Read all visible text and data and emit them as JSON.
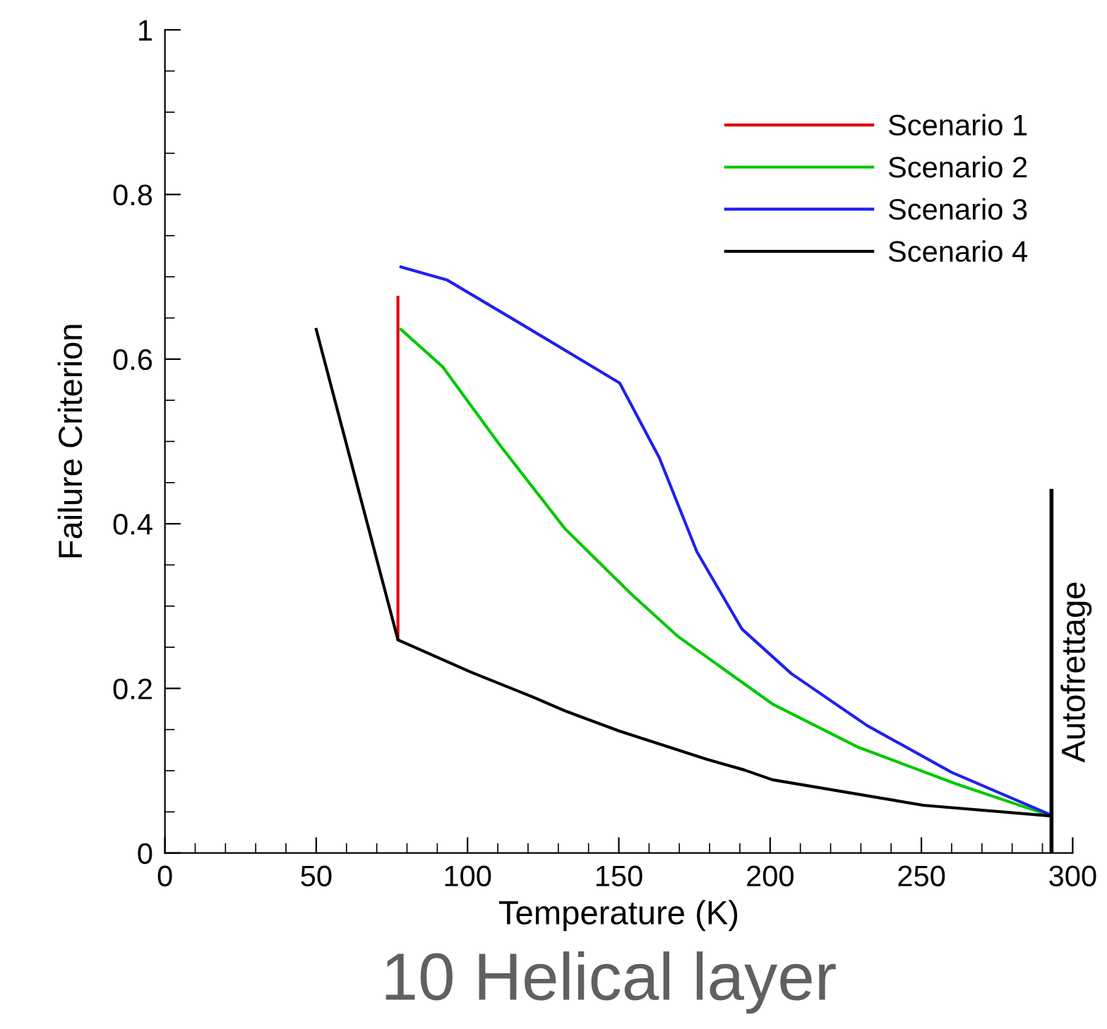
{
  "chart_data": {
    "type": "line",
    "title": "10 Helical layer",
    "xlabel": "Temperature (K)",
    "ylabel": "Failure Criterion",
    "xlim": [
      0,
      300
    ],
    "xticks": [
      0,
      50,
      100,
      150,
      200,
      250,
      300
    ],
    "ylim": [
      0,
      1
    ],
    "yticks": [
      0,
      0.2,
      0.4,
      0.6,
      0.8,
      1
    ],
    "grid": false,
    "legend": "top right",
    "marker": "none",
    "line_style": "solid",
    "ref_lines": [
      {
        "axis": "x",
        "value": 293,
        "label": "Autofrettage",
        "color": "#000000"
      }
    ],
    "series": [
      {
        "name": "Scenario 1",
        "color": "#e00000",
        "x": [
          77,
          77
        ],
        "values": [
          0.259,
          0.675
        ]
      },
      {
        "name": "Scenario 2",
        "color": "#00c800",
        "x": [
          78,
          91.7,
          110.4,
          132.2,
          154,
          169.6,
          200.8,
          228.8,
          261.5,
          293
        ],
        "values": [
          0.636,
          0.591,
          0.497,
          0.394,
          0.315,
          0.263,
          0.181,
          0.129,
          0.084,
          0.045
        ]
      },
      {
        "name": "Scenario 3",
        "color": "#2020f0",
        "x": [
          78,
          93.3,
          116.7,
          150.3,
          163.4,
          175.8,
          190.7,
          207,
          232,
          260,
          293
        ],
        "values": [
          0.712,
          0.696,
          0.645,
          0.571,
          0.48,
          0.366,
          0.272,
          0.218,
          0.155,
          0.098,
          0.046
        ]
      },
      {
        "name": "Scenario 4",
        "color": "#000000",
        "x": [
          50,
          77,
          101,
          121.3,
          132.7,
          150.3,
          179,
          191.4,
          200.8,
          250.6,
          293
        ],
        "values": [
          0.636,
          0.259,
          0.22,
          0.19,
          0.172,
          0.148,
          0.114,
          0.101,
          0.089,
          0.058,
          0.045
        ]
      }
    ]
  }
}
